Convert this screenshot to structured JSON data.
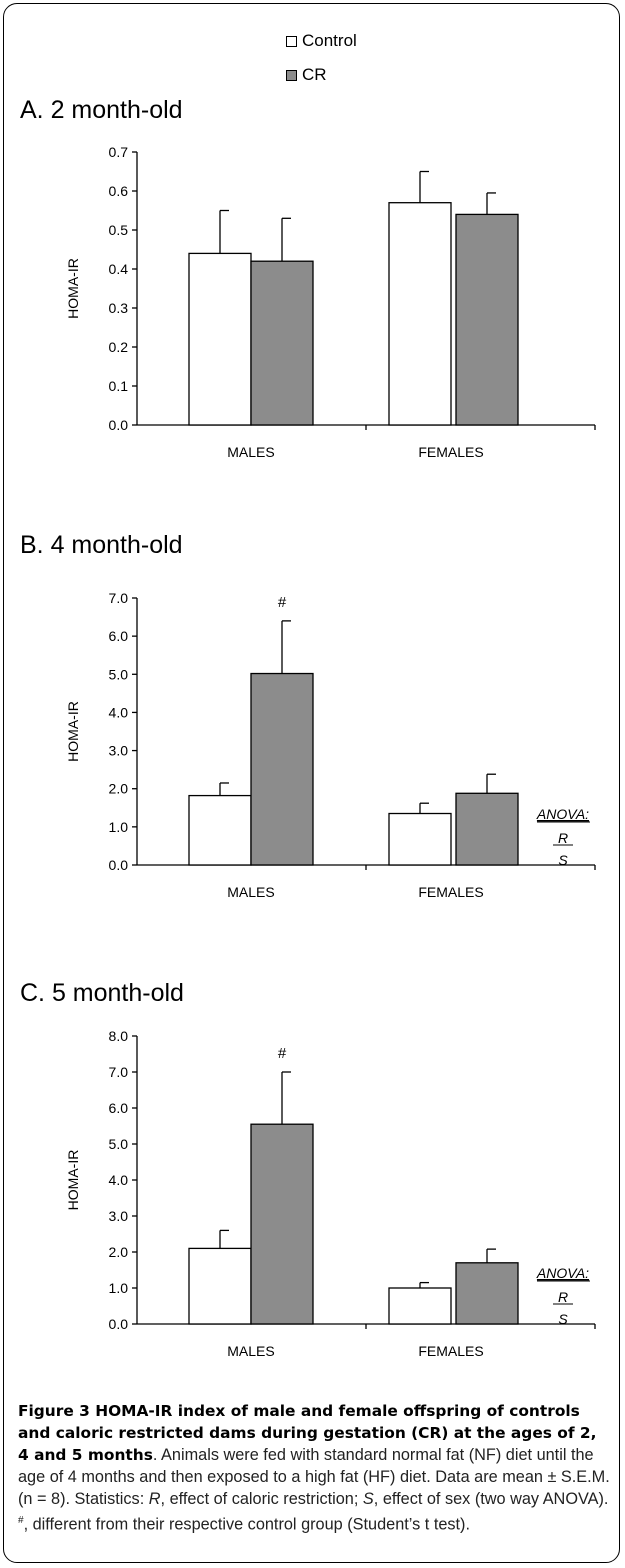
{
  "legend": {
    "items": [
      {
        "name": "Control",
        "color": "#ffffff"
      },
      {
        "name": "CR",
        "color": "#8c8c8c"
      }
    ]
  },
  "chart_data": [
    {
      "type": "bar",
      "title": "A. 2 month-old",
      "ylabel": "HOMA-IR",
      "categories": [
        "MALES",
        "FEMALES"
      ],
      "ylim": [
        0,
        0.7
      ],
      "yticks": [
        "0.0",
        "0.1",
        "0.2",
        "0.3",
        "0.4",
        "0.5",
        "0.6",
        "0.7"
      ],
      "series": [
        {
          "name": "Control",
          "values": [
            0.44,
            0.57
          ],
          "errors": [
            0.11,
            0.08
          ]
        },
        {
          "name": "CR",
          "values": [
            0.42,
            0.54
          ],
          "errors": [
            0.11,
            0.055
          ]
        }
      ],
      "markers": []
    },
    {
      "type": "bar",
      "title": "B. 4 month-old",
      "ylabel": "HOMA-IR",
      "categories": [
        "MALES",
        "FEMALES"
      ],
      "ylim": [
        0,
        7
      ],
      "yticks": [
        "0.0",
        "1.0",
        "2.0",
        "3.0",
        "4.0",
        "5.0",
        "6.0",
        "7.0"
      ],
      "series": [
        {
          "name": "Control",
          "values": [
            1.82,
            1.35
          ],
          "errors": [
            0.33,
            0.27
          ]
        },
        {
          "name": "CR",
          "values": [
            5.02,
            1.88
          ],
          "errors": [
            1.38,
            0.5
          ]
        }
      ],
      "markers": [
        {
          "series": 1,
          "category": 0,
          "text": "#"
        }
      ],
      "anova": {
        "label": "ANOVA:",
        "terms": [
          "R",
          "S"
        ]
      }
    },
    {
      "type": "bar",
      "title": "C. 5 month-old",
      "ylabel": "HOMA-IR",
      "categories": [
        "MALES",
        "FEMALES"
      ],
      "ylim": [
        0,
        8
      ],
      "yticks": [
        "0.0",
        "1.0",
        "2.0",
        "3.0",
        "4.0",
        "5.0",
        "6.0",
        "7.0",
        "8.0"
      ],
      "series": [
        {
          "name": "Control",
          "values": [
            2.1,
            1.0
          ],
          "errors": [
            0.5,
            0.15
          ]
        },
        {
          "name": "CR",
          "values": [
            5.55,
            1.7
          ],
          "errors": [
            1.45,
            0.38
          ]
        }
      ],
      "markers": [
        {
          "series": 1,
          "category": 0,
          "text": "#"
        }
      ],
      "anova": {
        "label": "ANOVA:",
        "terms": [
          "R",
          "S"
        ]
      }
    }
  ],
  "caption": {
    "lead": "Figure 3 HOMA-IR index of male and female offspring of controls and caloric restricted dams during gestation (CR) at the ages of 2, 4 and 5 months",
    "text1": ". Animals were fed with standard normal fat (NF) diet until the age of 4 months and then exposed to a high fat (HF) diet. Data are mean ± S.E.M. (n = 8). Statistics: ",
    "r": "R",
    "text2": ", effect of caloric restriction; ",
    "s": "S",
    "text3": ", effect of sex (two way ANOVA). ",
    "sup": "#",
    "text4": ", different from their respective control group (Student’s t test)."
  }
}
